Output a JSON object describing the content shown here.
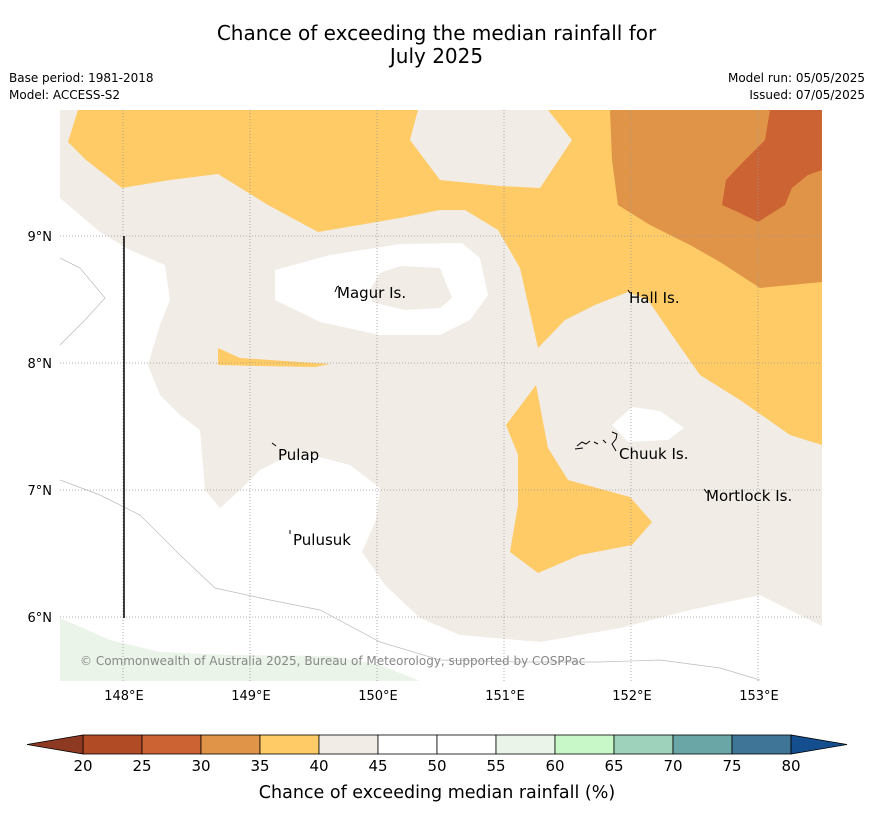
{
  "title_line1": "Chance of exceeding the median rainfall for",
  "title_line2": "July 2025",
  "base_period": "Base period: 1981-2018",
  "model": "Model: ACCESS-S2",
  "model_run": "Model run: 05/05/2025",
  "issued": "Issued: 07/05/2025",
  "copyright": "© Commonwealth of Australia 2025, Bureau of Meteorology, supported by COSPPac",
  "lon_labels": [
    "148°E",
    "149°E",
    "150°E",
    "151°E",
    "152°E",
    "153°E"
  ],
  "lat_labels": [
    "9°N",
    "8°N",
    "7°N",
    "6°N"
  ],
  "places": {
    "magur": "Magur Is.",
    "hall": "Hall Is.",
    "pulap": "Pulap",
    "chuuk": "Chuuk Is.",
    "mortlock": "Mortlock Is.",
    "pulusuk": "Pulusuk"
  },
  "colorbar": {
    "label": "Chance of exceeding median rainfall (%)",
    "ticks": [
      "20",
      "25",
      "30",
      "35",
      "40",
      "45",
      "50",
      "55",
      "60",
      "65",
      "70",
      "75",
      "80"
    ],
    "colors": {
      "under": "#8e3a22",
      "20-25": "#b04b25",
      "25-30": "#cc6332",
      "30-35": "#e09448",
      "35-40": "#fecb66",
      "40-45": "#f1ece6",
      "45-50": "#ffffff",
      "50-55": "#ffffff",
      "55-60": "#eaf4e8",
      "60-65": "#c8f8c8",
      "65-70": "#9fd2bb",
      "70-75": "#6ba6a6",
      "75-80": "#3f7697",
      "over": "#144e8e"
    }
  }
}
